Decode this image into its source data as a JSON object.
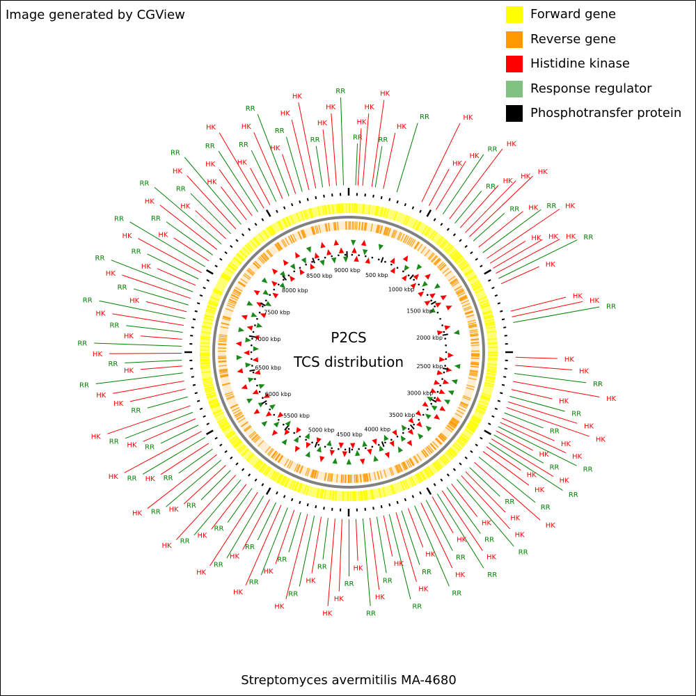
{
  "credit": "Image generated by CGView",
  "legend": [
    {
      "label": "Forward gene",
      "color": "#ffff00"
    },
    {
      "label": "Reverse gene",
      "color": "#ff9900"
    },
    {
      "label": "Histidine kinase",
      "color": "#ff0000"
    },
    {
      "label": "Response regulator",
      "color": "#80c080"
    },
    {
      "label": "Phosphotransfer protein",
      "color": "#000000"
    }
  ],
  "center": {
    "title": "P2CS",
    "subtitle": "TCS distribution"
  },
  "organism": "Streptomyces avermitilis MA-4680",
  "genome": {
    "length_kbp": 9025,
    "tick_labels": [
      "500 kbp",
      "1000 kbp",
      "1500 kbp",
      "2000 kbp",
      "2500 kbp",
      "3000 kbp",
      "3500 kbp",
      "4000 kbp",
      "4500 kbp",
      "5000 kbp",
      "5500 kbp",
      "6000 kbp",
      "6500 kbp",
      "7000 kbp",
      "7500 kbp",
      "8000 kbp",
      "8500 kbp",
      "9000 kbp"
    ],
    "tick_values_kbp": [
      500,
      1000,
      1500,
      2000,
      2500,
      3000,
      3500,
      4000,
      4500,
      5000,
      5500,
      6000,
      6500,
      7000,
      7500,
      8000,
      8500,
      9000
    ]
  },
  "feature_colors": {
    "forward": "#ffff00",
    "reverse": "#ff9900",
    "hk": "#ff0000",
    "rr": "#80c080",
    "label_hk": "#ff0000",
    "label_rr": "#008000",
    "backbone": "#808080"
  },
  "tcs_labels": [
    {
      "kbp": 60,
      "type": "RR"
    },
    {
      "kbp": 80,
      "type": "HK"
    },
    {
      "kbp": 120,
      "type": "HK"
    },
    {
      "kbp": 200,
      "type": "HK"
    },
    {
      "kbp": 230,
      "type": "RR"
    },
    {
      "kbp": 300,
      "type": "HK"
    },
    {
      "kbp": 420,
      "type": "RR"
    },
    {
      "kbp": 650,
      "type": "HK"
    },
    {
      "kbp": 720,
      "type": "HK"
    },
    {
      "kbp": 790,
      "type": "HK"
    },
    {
      "kbp": 860,
      "type": "RR"
    },
    {
      "kbp": 930,
      "type": "HK"
    },
    {
      "kbp": 990,
      "type": "RR"
    },
    {
      "kbp": 1050,
      "type": "HK"
    },
    {
      "kbp": 1110,
      "type": "HK"
    },
    {
      "kbp": 1160,
      "type": "HK"
    },
    {
      "kbp": 1210,
      "type": "RR"
    },
    {
      "kbp": 1280,
      "type": "HK"
    },
    {
      "kbp": 1340,
      "type": "RR"
    },
    {
      "kbp": 1400,
      "type": "HK"
    },
    {
      "kbp": 1450,
      "type": "HK"
    },
    {
      "kbp": 1500,
      "type": "HK"
    },
    {
      "kbp": 1550,
      "type": "HK"
    },
    {
      "kbp": 1600,
      "type": "RR"
    },
    {
      "kbp": 1650,
      "type": "HK"
    },
    {
      "kbp": 1900,
      "type": "HK"
    },
    {
      "kbp": 1950,
      "type": "HK"
    },
    {
      "kbp": 2000,
      "type": "RR"
    },
    {
      "kbp": 2300,
      "type": "HK"
    },
    {
      "kbp": 2370,
      "type": "HK"
    },
    {
      "kbp": 2440,
      "type": "RR"
    },
    {
      "kbp": 2510,
      "type": "HK"
    },
    {
      "kbp": 2580,
      "type": "HK"
    },
    {
      "kbp": 2640,
      "type": "RR"
    },
    {
      "kbp": 2690,
      "type": "HK"
    },
    {
      "kbp": 2740,
      "type": "HK"
    },
    {
      "kbp": 2790,
      "type": "RR"
    },
    {
      "kbp": 2840,
      "type": "HK"
    },
    {
      "kbp": 2880,
      "type": "HK"
    },
    {
      "kbp": 2920,
      "type": "RR"
    },
    {
      "kbp": 2960,
      "type": "HK"
    },
    {
      "kbp": 3000,
      "type": "RR"
    },
    {
      "kbp": 3040,
      "type": "HK"
    },
    {
      "kbp": 3080,
      "type": "RR"
    },
    {
      "kbp": 3120,
      "type": "HK"
    },
    {
      "kbp": 3170,
      "type": "HK"
    },
    {
      "kbp": 3230,
      "type": "RR"
    },
    {
      "kbp": 3290,
      "type": "HK"
    },
    {
      "kbp": 3350,
      "type": "RR"
    },
    {
      "kbp": 3400,
      "type": "HK"
    },
    {
      "kbp": 3450,
      "type": "HK"
    },
    {
      "kbp": 3500,
      "type": "RR"
    },
    {
      "kbp": 3560,
      "type": "HK"
    },
    {
      "kbp": 3610,
      "type": "RR"
    },
    {
      "kbp": 3660,
      "type": "HK"
    },
    {
      "kbp": 3710,
      "type": "RR"
    },
    {
      "kbp": 3760,
      "type": "HK"
    },
    {
      "kbp": 3820,
      "type": "RR"
    },
    {
      "kbp": 3870,
      "type": "HK"
    },
    {
      "kbp": 3930,
      "type": "RR"
    },
    {
      "kbp": 3990,
      "type": "HK"
    },
    {
      "kbp": 4050,
      "type": "RR"
    },
    {
      "kbp": 4100,
      "type": "HK"
    },
    {
      "kbp": 4160,
      "type": "RR"
    },
    {
      "kbp": 4210,
      "type": "HK"
    },
    {
      "kbp": 4270,
      "type": "RR"
    },
    {
      "kbp": 4330,
      "type": "HK"
    },
    {
      "kbp": 4390,
      "type": "RR"
    },
    {
      "kbp": 4450,
      "type": "HK"
    },
    {
      "kbp": 4510,
      "type": "RR"
    },
    {
      "kbp": 4570,
      "type": "HK"
    },
    {
      "kbp": 4630,
      "type": "HK"
    },
    {
      "kbp": 4690,
      "type": "RR"
    },
    {
      "kbp": 4750,
      "type": "HK"
    },
    {
      "kbp": 4810,
      "type": "RR"
    },
    {
      "kbp": 4870,
      "type": "HK"
    },
    {
      "kbp": 4930,
      "type": "RR"
    },
    {
      "kbp": 4990,
      "type": "HK"
    },
    {
      "kbp": 5050,
      "type": "RR"
    },
    {
      "kbp": 5110,
      "type": "HK"
    },
    {
      "kbp": 5160,
      "type": "RR"
    },
    {
      "kbp": 5220,
      "type": "HK"
    },
    {
      "kbp": 5280,
      "type": "RR"
    },
    {
      "kbp": 5340,
      "type": "HK"
    },
    {
      "kbp": 5400,
      "type": "RR"
    },
    {
      "kbp": 5460,
      "type": "HK"
    },
    {
      "kbp": 5520,
      "type": "RR"
    },
    {
      "kbp": 5580,
      "type": "HK"
    },
    {
      "kbp": 5640,
      "type": "RR"
    },
    {
      "kbp": 5700,
      "type": "HK"
    },
    {
      "kbp": 5760,
      "type": "RR"
    },
    {
      "kbp": 5820,
      "type": "HK"
    },
    {
      "kbp": 5880,
      "type": "RR"
    },
    {
      "kbp": 5940,
      "type": "HK"
    },
    {
      "kbp": 6000,
      "type": "RR"
    },
    {
      "kbp": 6060,
      "type": "HK"
    },
    {
      "kbp": 6120,
      "type": "RR"
    },
    {
      "kbp": 6180,
      "type": "HK"
    },
    {
      "kbp": 6240,
      "type": "RR"
    },
    {
      "kbp": 6300,
      "type": "HK"
    },
    {
      "kbp": 6380,
      "type": "RR"
    },
    {
      "kbp": 6450,
      "type": "HK"
    },
    {
      "kbp": 6520,
      "type": "HK"
    },
    {
      "kbp": 6590,
      "type": "RR"
    },
    {
      "kbp": 6650,
      "type": "HK"
    },
    {
      "kbp": 6700,
      "type": "RR"
    },
    {
      "kbp": 6760,
      "type": "HK"
    },
    {
      "kbp": 6820,
      "type": "RR"
    },
    {
      "kbp": 6880,
      "type": "HK"
    },
    {
      "kbp": 6940,
      "type": "RR"
    },
    {
      "kbp": 7000,
      "type": "HK"
    },
    {
      "kbp": 7060,
      "type": "RR"
    },
    {
      "kbp": 7120,
      "type": "HK"
    },
    {
      "kbp": 7180,
      "type": "RR"
    },
    {
      "kbp": 7240,
      "type": "HK"
    },
    {
      "kbp": 7300,
      "type": "RR"
    },
    {
      "kbp": 7360,
      "type": "HK"
    },
    {
      "kbp": 7420,
      "type": "RR"
    },
    {
      "kbp": 7480,
      "type": "HK"
    },
    {
      "kbp": 7540,
      "type": "RR"
    },
    {
      "kbp": 7600,
      "type": "HK"
    },
    {
      "kbp": 7660,
      "type": "RR"
    },
    {
      "kbp": 7720,
      "type": "HK"
    },
    {
      "kbp": 7780,
      "type": "RR"
    },
    {
      "kbp": 7840,
      "type": "HK"
    },
    {
      "kbp": 7900,
      "type": "RR"
    },
    {
      "kbp": 7960,
      "type": "HK"
    },
    {
      "kbp": 8020,
      "type": "RR"
    },
    {
      "kbp": 8080,
      "type": "HK"
    },
    {
      "kbp": 8140,
      "type": "HK"
    },
    {
      "kbp": 8200,
      "type": "RR"
    },
    {
      "kbp": 8260,
      "type": "HK"
    },
    {
      "kbp": 8320,
      "type": "HK"
    },
    {
      "kbp": 8380,
      "type": "RR"
    },
    {
      "kbp": 8440,
      "type": "HK"
    },
    {
      "kbp": 8500,
      "type": "RR"
    },
    {
      "kbp": 8560,
      "type": "HK"
    },
    {
      "kbp": 8620,
      "type": "RR"
    },
    {
      "kbp": 8680,
      "type": "HK"
    },
    {
      "kbp": 8740,
      "type": "HK"
    },
    {
      "kbp": 8800,
      "type": "RR"
    },
    {
      "kbp": 8860,
      "type": "HK"
    },
    {
      "kbp": 8920,
      "type": "HK"
    },
    {
      "kbp": 8980,
      "type": "RR"
    }
  ]
}
